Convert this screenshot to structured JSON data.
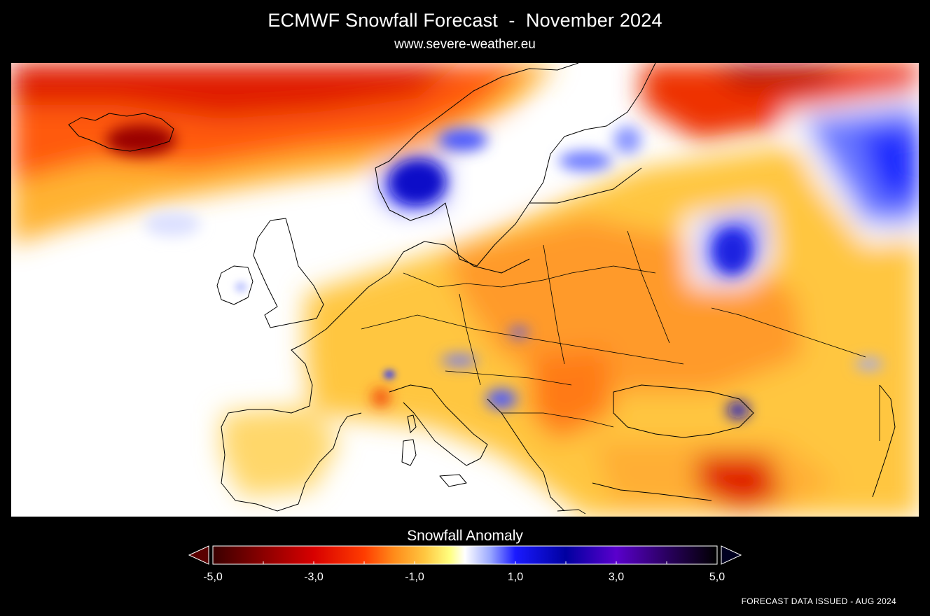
{
  "header": {
    "title": "ECMWF Snowfall Forecast  -  November 2024",
    "subtitle": "www.severe-weather.eu"
  },
  "legend": {
    "title": "Snowfall Anomaly",
    "min": -5.0,
    "max": 5.0,
    "ticks": [
      {
        "value": -5.0,
        "label": "-5,0"
      },
      {
        "value": -3.0,
        "label": "-3,0"
      },
      {
        "value": -1.0,
        "label": "-1,0"
      },
      {
        "value": 1.0,
        "label": "1,0"
      },
      {
        "value": 3.0,
        "label": "3,0"
      },
      {
        "value": 5.0,
        "label": "5,0"
      }
    ],
    "minor_ticks": [
      -4.0,
      -2.0,
      0.0,
      2.0,
      4.0
    ],
    "stops": [
      {
        "value": -5.0,
        "color": "#3a0000"
      },
      {
        "value": -4.0,
        "color": "#8b0000"
      },
      {
        "value": -3.0,
        "color": "#d80000"
      },
      {
        "value": -2.0,
        "color": "#ff3c00"
      },
      {
        "value": -1.4,
        "color": "#ff8c1a"
      },
      {
        "value": -0.8,
        "color": "#ffc640"
      },
      {
        "value": -0.3,
        "color": "#ffff80"
      },
      {
        "value": 0.0,
        "color": "#ffffff"
      },
      {
        "value": 0.5,
        "color": "#9aa8ff"
      },
      {
        "value": 1.0,
        "color": "#1a1aff"
      },
      {
        "value": 2.0,
        "color": "#0000a0"
      },
      {
        "value": 3.0,
        "color": "#5a00cc"
      },
      {
        "value": 4.0,
        "color": "#2a0060"
      },
      {
        "value": 5.0,
        "color": "#000000"
      }
    ]
  },
  "footer": {
    "issued": "FORECAST DATA ISSUED - AUG 2024"
  },
  "colors": {
    "background": "#000000",
    "text": "#ffffff",
    "coastline": "#000000"
  }
}
